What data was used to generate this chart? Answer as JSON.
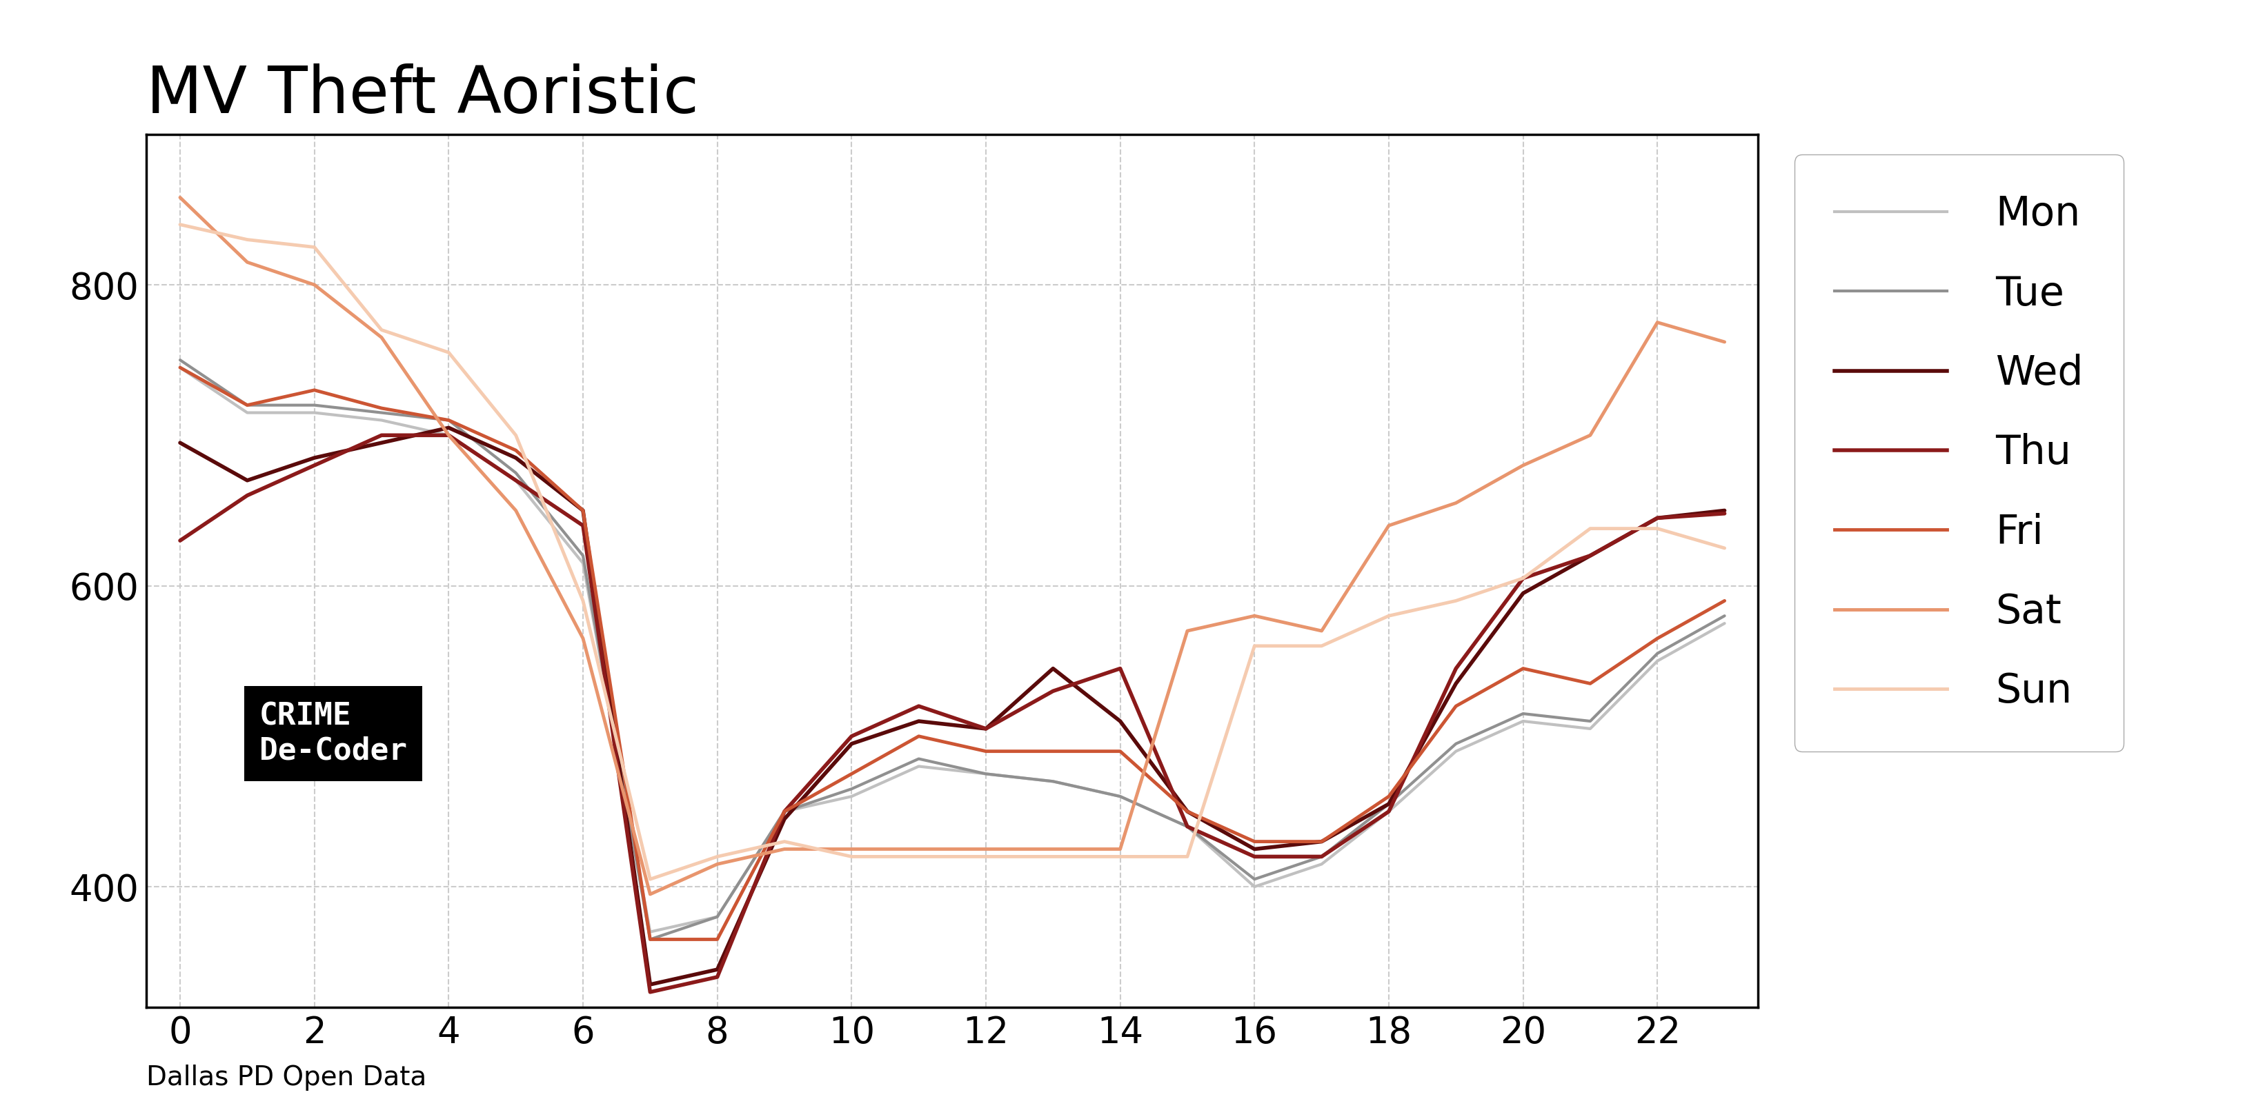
{
  "title": "MV Theft Aoristic",
  "xlabel_note": "Dallas PD Open Data",
  "hours": [
    0,
    1,
    2,
    3,
    4,
    5,
    6,
    7,
    8,
    9,
    10,
    11,
    12,
    13,
    14,
    15,
    16,
    17,
    18,
    19,
    20,
    21,
    22,
    23
  ],
  "series": {
    "Mon": [
      745,
      715,
      715,
      710,
      700,
      670,
      615,
      370,
      380,
      450,
      460,
      480,
      475,
      470,
      460,
      440,
      400,
      415,
      450,
      490,
      510,
      505,
      550,
      575
    ],
    "Tue": [
      750,
      720,
      720,
      715,
      710,
      675,
      620,
      365,
      380,
      450,
      465,
      485,
      475,
      470,
      460,
      440,
      405,
      420,
      455,
      495,
      515,
      510,
      555,
      580
    ],
    "Wed": [
      695,
      670,
      685,
      695,
      705,
      685,
      650,
      335,
      345,
      445,
      495,
      510,
      505,
      545,
      510,
      450,
      425,
      430,
      455,
      535,
      595,
      620,
      645,
      650
    ],
    "Thu": [
      630,
      660,
      680,
      700,
      700,
      670,
      640,
      330,
      340,
      450,
      500,
      520,
      505,
      530,
      545,
      440,
      420,
      420,
      450,
      545,
      605,
      620,
      645,
      648
    ],
    "Fri": [
      745,
      720,
      730,
      718,
      710,
      690,
      650,
      365,
      365,
      450,
      475,
      500,
      490,
      490,
      490,
      450,
      430,
      430,
      460,
      520,
      545,
      535,
      565,
      590
    ],
    "Sat": [
      858,
      815,
      800,
      765,
      700,
      650,
      565,
      395,
      415,
      425,
      425,
      425,
      425,
      425,
      425,
      570,
      580,
      570,
      640,
      655,
      680,
      700,
      775,
      762
    ],
    "Sun": [
      840,
      830,
      825,
      770,
      755,
      700,
      590,
      405,
      420,
      430,
      420,
      420,
      420,
      420,
      420,
      420,
      560,
      560,
      580,
      590,
      605,
      638,
      638,
      625
    ]
  },
  "colors": {
    "Mon": "#c0c0c0",
    "Tue": "#909090",
    "Wed": "#5a0a0a",
    "Thu": "#8b1a1a",
    "Fri": "#cc5533",
    "Sat": "#e8956d",
    "Sun": "#f5cbb0"
  },
  "linewidths": {
    "Mon": 3.0,
    "Tue": 3.0,
    "Wed": 4.0,
    "Thu": 4.0,
    "Fri": 3.5,
    "Sat": 3.5,
    "Sun": 3.5
  },
  "ylim": [
    320,
    900
  ],
  "yticks": [
    400,
    600,
    800
  ],
  "xticks": [
    0,
    2,
    4,
    6,
    8,
    10,
    12,
    14,
    16,
    18,
    20,
    22
  ],
  "background_color": "#ffffff",
  "grid_color": "#cccccc",
  "title_fontsize": 68,
  "tick_fontsize": 38,
  "legend_fontsize": 42,
  "note_fontsize": 28,
  "crime_fontsize": 32
}
